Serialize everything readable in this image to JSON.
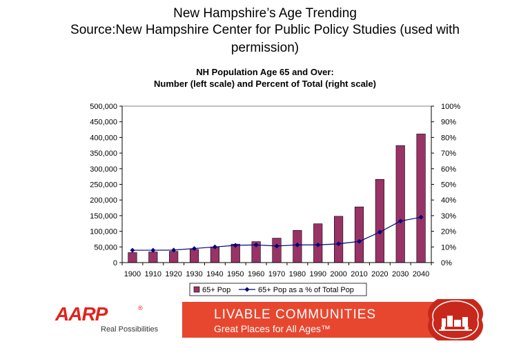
{
  "slide": {
    "title_line1": "New Hampshire’s Age Trending",
    "title_line2": "Source:New Hampshire Center for Public Policy Studies (used with",
    "title_line3": "permission)"
  },
  "chart_data": {
    "type": "bar",
    "title": "NH Population Age 65 and Over:",
    "subtitle": "Number (left scale) and Percent of Total (right scale)",
    "categories": [
      "1900",
      "1910",
      "1920",
      "1930",
      "1940",
      "1950",
      "1960",
      "1970",
      "1980",
      "1990",
      "2000",
      "2010",
      "2020",
      "2030",
      "2040"
    ],
    "series": [
      {
        "name": "65+ Pop",
        "type": "bar",
        "axis": "left",
        "color": "#993366",
        "values": [
          32000,
          34000,
          36000,
          42000,
          50000,
          59000,
          67000,
          78000,
          103000,
          124000,
          148000,
          178000,
          266000,
          374000,
          411000
        ]
      },
      {
        "name": "65+ Pop as a % of Total Pop",
        "type": "line",
        "axis": "right",
        "color": "#000080",
        "values": [
          7.9,
          7.9,
          8.0,
          9.0,
          10.0,
          11.0,
          11.3,
          10.6,
          11.3,
          11.3,
          12.0,
          13.5,
          19.5,
          26.5,
          29.0
        ]
      }
    ],
    "ylim_left": [
      0,
      500000
    ],
    "yticks_left": [
      "0",
      "50,000",
      "100,000",
      "150,000",
      "200,000",
      "250,000",
      "300,000",
      "350,000",
      "400,000",
      "450,000",
      "500,000"
    ],
    "ylim_right": [
      0,
      100
    ],
    "yticks_right": [
      "0%",
      "10%",
      "20%",
      "30%",
      "40%",
      "50%",
      "60%",
      "70%",
      "80%",
      "90%",
      "100%"
    ],
    "grid": false,
    "legend": "bottom"
  },
  "branding": {
    "aarp_logo_text": "AARP",
    "aarp_registered": "®",
    "aarp_tagline": "Real Possibilities",
    "banner_line1": "LIVABLE COMMUNITIES",
    "banner_line2": "Great Places for All Ages™",
    "banner_color": "#e8472f",
    "aarp_red": "#e2231a"
  }
}
